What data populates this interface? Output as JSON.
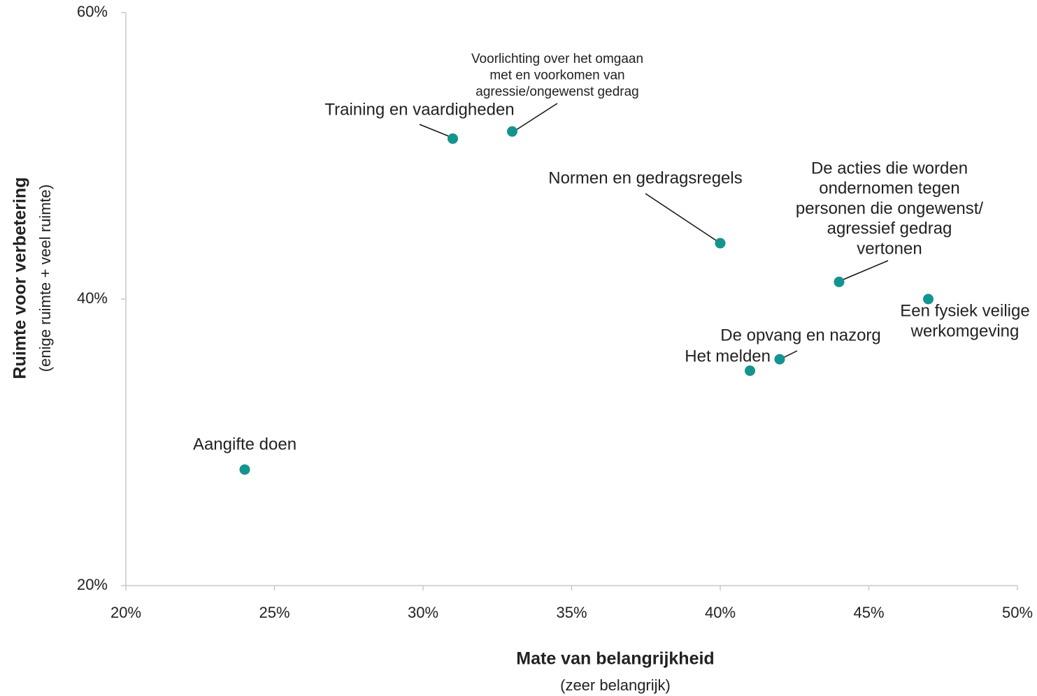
{
  "chart_data": {
    "type": "scatter",
    "x_label": "Mate van belangrijkheid",
    "x_sublabel": "(zeer belangrijk)",
    "y_label": "Ruimte voor verbetering",
    "y_sublabel": "(enige ruimte + veel ruimte)",
    "labels": [
      [
        "Aangifte doen"
      ],
      [
        "Training en vaardigheden"
      ],
      [
        "Voorlichting over het omgaan",
        "met en voorkomen van",
        "agressie/ongewenst gedrag"
      ],
      [
        "Normen en gedragsregels"
      ],
      [
        "De acties die worden",
        "ondernomen tegen",
        "personen die ongewenst/",
        "agressief gedrag",
        "vertonen"
      ],
      [
        "Een fysiek veilige",
        "werkomgeving"
      ],
      [
        "De opvang en nazorg"
      ],
      [
        "Het melden"
      ]
    ],
    "x": [
      24,
      31,
      33,
      40,
      44,
      47,
      42,
      41
    ],
    "values": [
      28.1,
      51.2,
      51.7,
      43.9,
      41.2,
      40,
      35.8,
      35
    ],
    "color": "#14948f",
    "xlim": [
      20,
      50
    ],
    "xticks": [
      {
        "value": 20,
        "label": "20%"
      },
      {
        "value": 25,
        "label": "25%"
      },
      {
        "value": 30,
        "label": "30%"
      },
      {
        "value": 35,
        "label": "35%"
      },
      {
        "value": 40,
        "label": "40%"
      },
      {
        "value": 45,
        "label": "45%"
      },
      {
        "value": 50,
        "label": "50%"
      }
    ],
    "ylim": [
      20,
      60
    ],
    "yticks": [
      {
        "value": 20,
        "label": "20%"
      },
      {
        "value": 40,
        "label": "40%"
      },
      {
        "value": 60,
        "label": "60%"
      }
    ]
  }
}
